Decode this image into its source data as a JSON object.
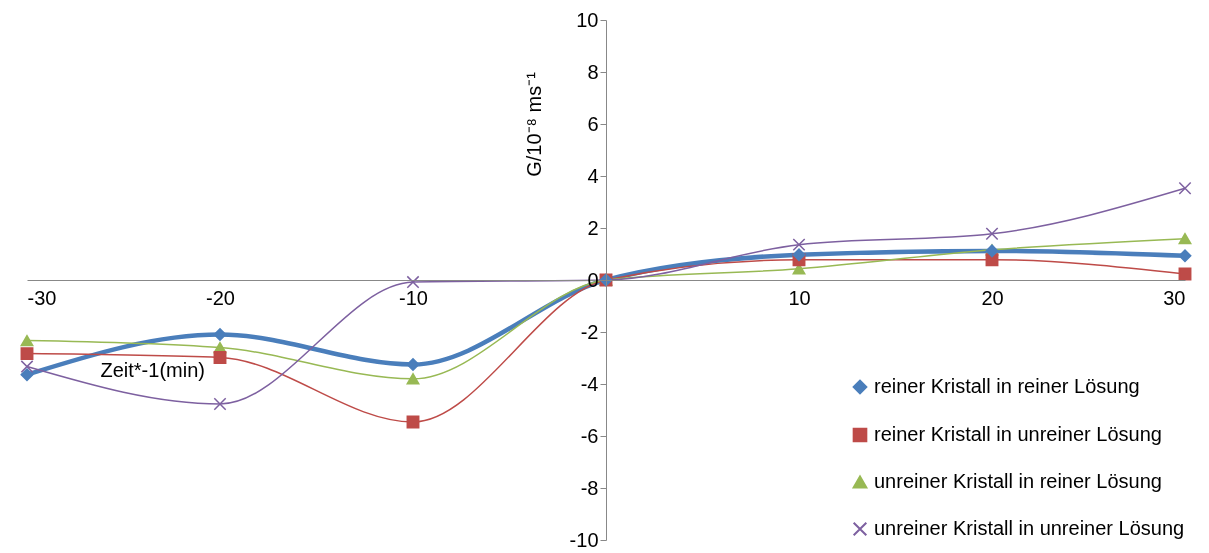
{
  "chart_data": {
    "type": "line",
    "xlabel": "Zeit*-1(min)",
    "ylabel": "G/10⁻⁸ ms⁻¹",
    "x": [
      -30,
      -20,
      -10,
      0,
      10,
      20,
      30
    ],
    "xlim": [
      -30,
      30
    ],
    "xticks": [
      -30,
      -20,
      -10,
      10,
      20,
      30
    ],
    "ylim": [
      -10,
      10
    ],
    "yticks": [
      -10,
      -8,
      -6,
      -4,
      -2,
      0,
      2,
      4,
      6,
      8,
      10
    ],
    "grid": false,
    "legend": "bottom right",
    "series": [
      {
        "name": "reiner Kristall in reiner Lösung",
        "color": "#4a7ebb",
        "marker": "diamond",
        "values": [
          -3.64,
          -2.1,
          -3.25,
          0,
          0.97,
          1.12,
          0.93
        ]
      },
      {
        "name": "reiner Kristall in unreiner Lösung",
        "color": "#be4b48",
        "marker": "square",
        "values": [
          -2.83,
          -2.98,
          -5.46,
          0,
          0.78,
          0.78,
          0.23
        ]
      },
      {
        "name": "unreiner Kristall in reiner Lösung",
        "color": "#98b954",
        "marker": "triangle",
        "values": [
          -2.33,
          -2.6,
          -3.8,
          0,
          0.43,
          1.16,
          1.59
        ]
      },
      {
        "name": "unreiner Kristall in unreiner Lösung",
        "color": "#7d60a0",
        "marker": "cross",
        "values": [
          -3.33,
          -4.77,
          -0.08,
          0,
          1.36,
          1.78,
          3.53
        ]
      }
    ]
  }
}
